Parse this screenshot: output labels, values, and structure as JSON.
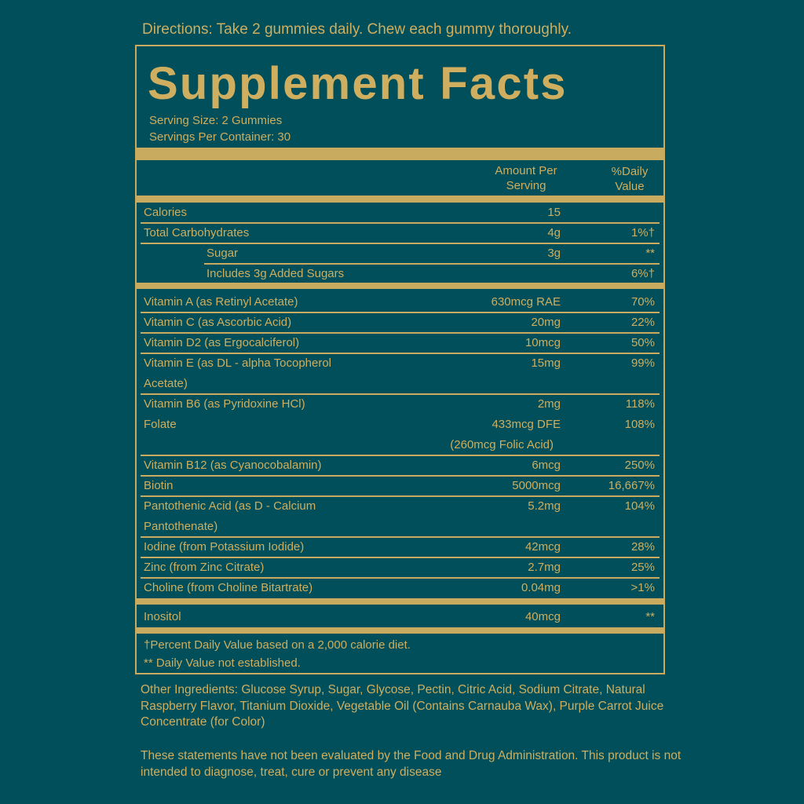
{
  "directions": "Directions: Take 2 gummies daily. Chew each gummy thoroughly.",
  "title": "Supplement Facts",
  "serving_size": "Serving Size: 2 Gummies",
  "servings_per_container": "Servings Per Container: 30",
  "header": {
    "amount_line1": "Amount Per",
    "amount_line2": "Serving",
    "dv_line1": "%Daily",
    "dv_line2": "Value"
  },
  "rows": [
    {
      "name": "Calories",
      "amount": "15",
      "dv": ""
    },
    {
      "name": "Total Carbohydrates",
      "amount": "4g",
      "dv": "1%†"
    },
    {
      "name": "Sugar",
      "amount": "3g",
      "dv": "**",
      "indent": true
    },
    {
      "name": "Includes 3g Added Sugars",
      "amount": "",
      "dv": "6%†",
      "indent": true
    },
    {
      "name": "Vitamin A (as Retinyl Acetate)",
      "amount": "630mcg RAE",
      "dv": "70%"
    },
    {
      "name": "Vitamin C (as Ascorbic Acid)",
      "amount": "20mg",
      "dv": "22%"
    },
    {
      "name": "Vitamin D2 (as Ergocalciferol)",
      "amount": "10mcg",
      "dv": "50%"
    },
    {
      "name": "Vitamin E (as DL - alpha Tocopherol",
      "name2": "Acetate)",
      "amount": "15mg",
      "dv": "99%"
    },
    {
      "name": "Vitamin B6 (as Pyridoxine HCl)",
      "amount": "2mg",
      "dv": "118%"
    },
    {
      "name": "Folate",
      "amount": "433mcg DFE",
      "amount2": "(260mcg Folic Acid)",
      "dv": "108%"
    },
    {
      "name": "Vitamin B12 (as Cyanocobalamin)",
      "amount": "6mcg",
      "dv": "250%"
    },
    {
      "name": "Biotin",
      "amount": "5000mcg",
      "dv": "16,667%"
    },
    {
      "name": "Pantothenic Acid (as D - Calcium",
      "name2": "Pantothenate)",
      "amount": "5.2mg",
      "dv": "104%"
    },
    {
      "name": "Iodine (from Potassium Iodide)",
      "amount": "42mcg",
      "dv": "28%"
    },
    {
      "name": "Zinc (from Zinc Citrate)",
      "amount": "2.7mg",
      "dv": "25%"
    },
    {
      "name": "Choline (from Choline Bitartrate)",
      "amount": "0.04mg",
      "dv": ">1%"
    },
    {
      "name": "Inositol",
      "amount": "40mcg",
      "dv": "**"
    }
  ],
  "footnotes": [
    "†Percent Daily Value based on a 2,000 calorie diet.",
    "** Daily Value not established."
  ],
  "other_ingredients": "Other Ingredients: Glucose Syrup, Sugar, Glycose, Pectin, Citric Acid, Sodium Citrate, Natural Raspberry Flavor, Titanium Dioxide, Vegetable Oil (Contains Carnauba Wax), Purple Carrot Juice Concentrate (for Color)",
  "disclaimer": "These statements have not been evaluated by the Food and Drug Administration. This product is not intended to diagnose, treat, cure or prevent any disease",
  "colors": {
    "background": "#004f5a",
    "gold": "#c9ab5f"
  }
}
